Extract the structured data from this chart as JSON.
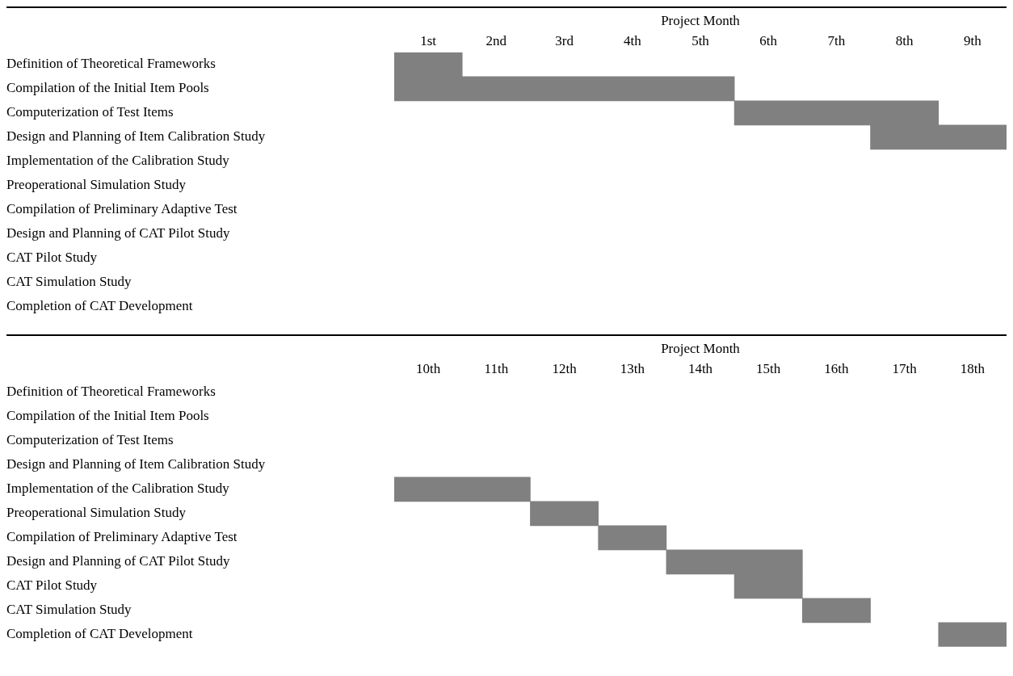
{
  "chart_data": [
    {
      "type": "bar",
      "orientation": "horizontal",
      "xlabel": "Project Month",
      "grid": false,
      "color": "#808080",
      "categories": [
        "Definition of Theoretical Frameworks",
        "Compilation of the Initial Item Pools",
        "Computerization of Test Items",
        "Design and Planning of Item Calibration Study",
        "Implementation of the Calibration Study",
        "Preoperational Simulation Study",
        "Compilation of Preliminary Adaptive Test",
        "Design and Planning of CAT Pilot Study",
        "CAT Pilot Study",
        "CAT Simulation Study",
        "Completion of CAT Development"
      ],
      "values": [
        1,
        5,
        3,
        2,
        null,
        null,
        null,
        null,
        null,
        null,
        null
      ],
      "base": [
        0,
        0,
        5,
        7,
        null,
        null,
        null,
        null,
        null,
        null,
        null
      ],
      "xlim": [
        0,
        9
      ],
      "xticks": [
        {
          "value": 0.5,
          "label": "1st"
        },
        {
          "value": 1.5,
          "label": "2nd"
        },
        {
          "value": 2.5,
          "label": "3rd"
        },
        {
          "value": 3.5,
          "label": "4th"
        },
        {
          "value": 4.5,
          "label": "5th"
        },
        {
          "value": 5.5,
          "label": "6th"
        },
        {
          "value": 6.5,
          "label": "7th"
        },
        {
          "value": 7.5,
          "label": "8th"
        },
        {
          "value": 8.5,
          "label": "9th"
        }
      ]
    },
    {
      "type": "bar",
      "orientation": "horizontal",
      "xlabel": "Project Month",
      "grid": false,
      "color": "#808080",
      "categories": [
        "Definition of Theoretical Frameworks",
        "Compilation of the Initial Item Pools",
        "Computerization of Test Items",
        "Design and Planning of Item Calibration Study",
        "Implementation of the Calibration Study",
        "Preoperational Simulation Study",
        "Compilation of Preliminary Adaptive Test",
        "Design and Planning of CAT Pilot Study",
        "CAT Pilot Study",
        "CAT Simulation Study",
        "Completion of CAT Development"
      ],
      "values": [
        null,
        null,
        null,
        null,
        2,
        1,
        1,
        2,
        1,
        1,
        1
      ],
      "base": [
        null,
        null,
        null,
        null,
        9,
        11,
        12,
        13,
        14,
        15,
        17
      ],
      "xlim": [
        9,
        18
      ],
      "xticks": [
        {
          "value": 9.5,
          "label": "10th"
        },
        {
          "value": 10.5,
          "label": "11th"
        },
        {
          "value": 11.5,
          "label": "12th"
        },
        {
          "value": 12.5,
          "label": "13th"
        },
        {
          "value": 13.5,
          "label": "14th"
        },
        {
          "value": 14.5,
          "label": "15th"
        },
        {
          "value": 15.5,
          "label": "16th"
        },
        {
          "value": 16.5,
          "label": "17th"
        },
        {
          "value": 17.5,
          "label": "18th"
        }
      ]
    }
  ]
}
